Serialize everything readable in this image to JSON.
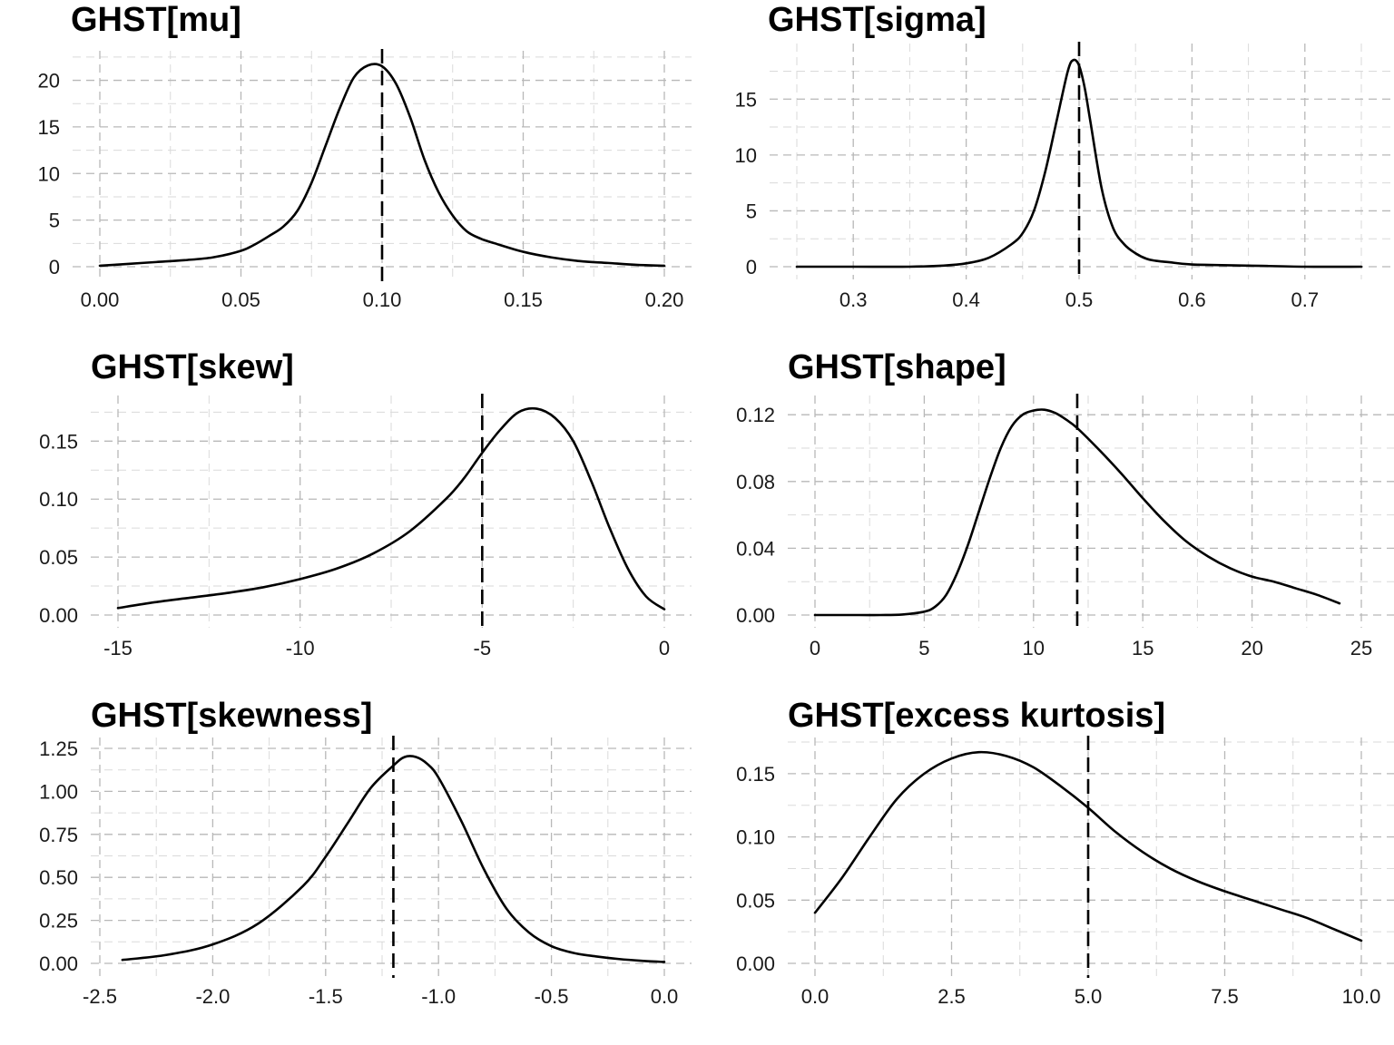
{
  "chart_data": [
    {
      "type": "line",
      "title": "GHST[mu]",
      "xlim": [
        0.0,
        0.2
      ],
      "ylim": [
        0,
        22
      ],
      "x_ticks": [
        0.0,
        0.05,
        0.1,
        0.15,
        0.2
      ],
      "x_tick_labels": [
        "0.00",
        "0.05",
        "0.10",
        "0.15",
        "0.20"
      ],
      "y_ticks": [
        0,
        5,
        10,
        15,
        20
      ],
      "y_tick_labels": [
        "0",
        "5",
        "10",
        "15",
        "20"
      ],
      "reference_line": 0.1,
      "grid": true,
      "series": [
        {
          "x": [
            0.0,
            0.01,
            0.02,
            0.03,
            0.04,
            0.05,
            0.055,
            0.06,
            0.065,
            0.07,
            0.075,
            0.08,
            0.085,
            0.09,
            0.095,
            0.1,
            0.105,
            0.11,
            0.115,
            0.12,
            0.125,
            0.13,
            0.135,
            0.14,
            0.15,
            0.16,
            0.17,
            0.18,
            0.19,
            0.2
          ],
          "y": [
            0.1,
            0.3,
            0.5,
            0.7,
            1.0,
            1.7,
            2.4,
            3.3,
            4.3,
            6.0,
            9.0,
            13.0,
            17.0,
            20.3,
            21.6,
            21.5,
            19.6,
            16.0,
            11.5,
            8.0,
            5.5,
            3.8,
            3.0,
            2.5,
            1.6,
            1.0,
            0.6,
            0.4,
            0.2,
            0.1
          ]
        }
      ]
    },
    {
      "type": "line",
      "title": "GHST[sigma]",
      "xlim": [
        0.25,
        0.75
      ],
      "ylim": [
        0,
        19
      ],
      "x_ticks": [
        0.3,
        0.4,
        0.5,
        0.6,
        0.7
      ],
      "x_tick_labels": [
        "0.3",
        "0.4",
        "0.5",
        "0.6",
        "0.7"
      ],
      "y_ticks": [
        0,
        5,
        10,
        15
      ],
      "y_tick_labels": [
        "0",
        "5",
        "10",
        "15"
      ],
      "reference_line": 0.5,
      "grid": true,
      "series": [
        {
          "x": [
            0.25,
            0.3,
            0.35,
            0.38,
            0.4,
            0.42,
            0.44,
            0.45,
            0.46,
            0.47,
            0.48,
            0.49,
            0.495,
            0.5,
            0.505,
            0.51,
            0.52,
            0.53,
            0.54,
            0.55,
            0.56,
            0.57,
            0.58,
            0.6,
            0.65,
            0.7,
            0.75
          ],
          "y": [
            0,
            0,
            0,
            0.1,
            0.3,
            0.8,
            2.0,
            3.0,
            5.0,
            8.5,
            13.0,
            17.5,
            18.5,
            18.0,
            16.0,
            13.0,
            7.0,
            3.5,
            2.0,
            1.2,
            0.7,
            0.5,
            0.4,
            0.2,
            0.1,
            0,
            0
          ]
        }
      ]
    },
    {
      "type": "line",
      "title": "GHST[skew]",
      "xlim": [
        -15,
        0
      ],
      "ylim": [
        0,
        0.18
      ],
      "x_ticks": [
        -15,
        -10,
        -5,
        0
      ],
      "x_tick_labels": [
        "-15",
        "-10",
        "-5",
        "0"
      ],
      "y_ticks": [
        0,
        0.05,
        0.1,
        0.15
      ],
      "y_tick_labels": [
        "0.00",
        "0.05",
        "0.10",
        "0.15"
      ],
      "reference_line": -5,
      "grid": true,
      "series": [
        {
          "x": [
            -15,
            -14,
            -13,
            -12,
            -11,
            -10,
            -9,
            -8,
            -7,
            -6,
            -5.5,
            -5,
            -4.5,
            -4,
            -3.5,
            -3,
            -2.5,
            -2,
            -1.5,
            -1,
            -0.5,
            0
          ],
          "y": [
            0.006,
            0.011,
            0.015,
            0.019,
            0.024,
            0.031,
            0.04,
            0.053,
            0.072,
            0.1,
            0.118,
            0.14,
            0.16,
            0.175,
            0.178,
            0.17,
            0.15,
            0.115,
            0.075,
            0.04,
            0.016,
            0.005
          ]
        }
      ]
    },
    {
      "type": "line",
      "title": "GHST[shape]",
      "xlim": [
        0,
        25
      ],
      "ylim": [
        0,
        0.125
      ],
      "x_ticks": [
        0,
        5,
        10,
        15,
        20,
        25
      ],
      "x_tick_labels": [
        "0",
        "5",
        "10",
        "15",
        "20",
        "25"
      ],
      "y_ticks": [
        0,
        0.04,
        0.08,
        0.12
      ],
      "y_tick_labels": [
        "0.00",
        "0.04",
        "0.08",
        "0.12"
      ],
      "reference_line": 12,
      "grid": true,
      "series": [
        {
          "x": [
            0,
            2,
            3,
            4,
            5,
            5.5,
            6,
            6.5,
            7,
            7.5,
            8,
            8.5,
            9,
            9.5,
            10,
            10.5,
            11,
            11.5,
            12,
            13,
            14,
            15,
            16,
            17,
            18,
            19,
            20,
            21,
            22,
            23,
            24
          ],
          "y": [
            0,
            0,
            0,
            0.0003,
            0.002,
            0.005,
            0.012,
            0.025,
            0.042,
            0.062,
            0.082,
            0.1,
            0.113,
            0.12,
            0.1225,
            0.123,
            0.121,
            0.117,
            0.112,
            0.099,
            0.085,
            0.07,
            0.056,
            0.044,
            0.035,
            0.028,
            0.023,
            0.02,
            0.016,
            0.012,
            0.007
          ]
        }
      ]
    },
    {
      "type": "line",
      "title": "GHST[skewness]",
      "xlim": [
        -2.5,
        0
      ],
      "ylim": [
        0,
        1.25
      ],
      "x_ticks": [
        -2.5,
        -2.0,
        -1.5,
        -1.0,
        -0.5,
        0.0
      ],
      "x_tick_labels": [
        "-2.5",
        "-2.0",
        "-1.5",
        "-1.0",
        "-0.5",
        "0.0"
      ],
      "y_ticks": [
        0,
        0.25,
        0.5,
        0.75,
        1.0,
        1.25
      ],
      "y_tick_labels": [
        "0.00",
        "0.25",
        "0.50",
        "0.75",
        "1.00",
        "1.25"
      ],
      "reference_line": -1.2,
      "grid": true,
      "series": [
        {
          "x": [
            -2.4,
            -2.2,
            -2.0,
            -1.8,
            -1.6,
            -1.5,
            -1.4,
            -1.3,
            -1.2,
            -1.15,
            -1.1,
            -1.05,
            -1.0,
            -0.9,
            -0.8,
            -0.7,
            -0.6,
            -0.5,
            -0.4,
            -0.3,
            -0.2,
            -0.1,
            0.0
          ],
          "y": [
            0.02,
            0.05,
            0.11,
            0.23,
            0.45,
            0.62,
            0.82,
            1.02,
            1.15,
            1.2,
            1.2,
            1.16,
            1.08,
            0.83,
            0.55,
            0.32,
            0.18,
            0.1,
            0.06,
            0.04,
            0.025,
            0.015,
            0.008
          ]
        }
      ]
    },
    {
      "type": "line",
      "title": "GHST[excess kurtosis]",
      "xlim": [
        0,
        10
      ],
      "ylim": [
        0,
        0.17
      ],
      "x_ticks": [
        0.0,
        2.5,
        5.0,
        7.5,
        10.0
      ],
      "x_tick_labels": [
        "0.0",
        "2.5",
        "5.0",
        "7.5",
        "10.0"
      ],
      "y_ticks": [
        0,
        0.05,
        0.1,
        0.15
      ],
      "y_tick_labels": [
        "0.00",
        "0.05",
        "0.10",
        "0.15"
      ],
      "reference_line": 5,
      "grid": true,
      "series": [
        {
          "x": [
            0,
            0.5,
            1,
            1.5,
            2,
            2.5,
            3,
            3.5,
            4,
            4.5,
            5,
            5.5,
            6,
            6.5,
            7,
            7.5,
            8,
            8.5,
            9,
            9.5,
            10
          ],
          "y": [
            0.04,
            0.068,
            0.1,
            0.13,
            0.15,
            0.162,
            0.167,
            0.164,
            0.155,
            0.14,
            0.123,
            0.104,
            0.088,
            0.075,
            0.065,
            0.057,
            0.05,
            0.043,
            0.036,
            0.027,
            0.018
          ]
        }
      ]
    }
  ]
}
